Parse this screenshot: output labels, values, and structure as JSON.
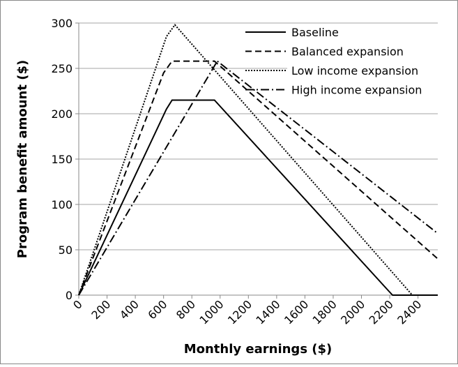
{
  "chart_data": {
    "type": "line",
    "x_label": "Monthly earnings ($)",
    "y_label": "Program benefit amount ($)",
    "xlim": [
      0,
      2540
    ],
    "ylim": [
      0,
      300
    ],
    "xticks": [
      0,
      200,
      400,
      600,
      800,
      1000,
      1200,
      1400,
      1600,
      1800,
      2000,
      2200,
      2400
    ],
    "yticks": [
      0,
      50,
      100,
      150,
      200,
      250,
      300
    ],
    "grid": true,
    "legend": "top-right",
    "series": [
      {
        "name": "Baseline",
        "color": "#000000",
        "dash": "none",
        "x": [
          0,
          620,
          660,
          960,
          2190,
          2220,
          2540
        ],
        "values": [
          0,
          205,
          215,
          215,
          5,
          0,
          0
        ]
      },
      {
        "name": "Balanced expansion",
        "color": "#000000",
        "dash": "9,5",
        "x": [
          0,
          600,
          660,
          960,
          2540
        ],
        "values": [
          0,
          245,
          258,
          258,
          40
        ]
      },
      {
        "name": "Low income expansion",
        "color": "#000000",
        "dash": "2,2",
        "x": [
          0,
          620,
          680,
          2360,
          2540
        ],
        "values": [
          0,
          285,
          298,
          0,
          0
        ]
      },
      {
        "name": "High income expansion",
        "color": "#000000",
        "dash": "12,4,2,4",
        "x": [
          0,
          980,
          2540
        ],
        "values": [
          0,
          258,
          68
        ]
      }
    ]
  }
}
